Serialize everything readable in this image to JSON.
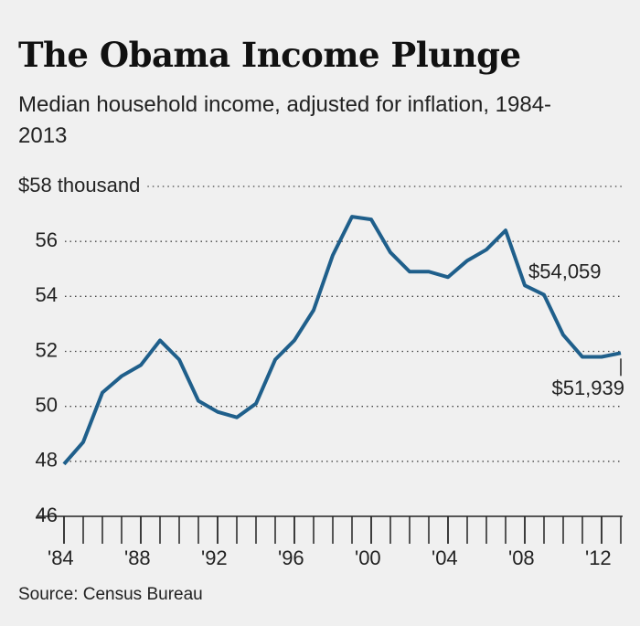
{
  "chart_data": {
    "type": "line",
    "title": "The Obama Income Plunge",
    "subtitle": "Median household income, adjusted for inflation, 1984-2013",
    "source": "Source: Census Bureau",
    "x": [
      1984,
      1985,
      1986,
      1987,
      1988,
      1989,
      1990,
      1991,
      1992,
      1993,
      1994,
      1995,
      1996,
      1997,
      1998,
      1999,
      2000,
      2001,
      2002,
      2003,
      2004,
      2005,
      2006,
      2007,
      2008,
      2009,
      2010,
      2011,
      2012,
      2013
    ],
    "series": [
      {
        "name": "Median household income",
        "color": "#1f5f8b",
        "values": [
          47.9,
          48.7,
          50.5,
          51.1,
          51.5,
          52.4,
          51.7,
          50.2,
          49.8,
          49.6,
          50.1,
          51.7,
          52.4,
          53.5,
          55.5,
          56.9,
          56.8,
          55.6,
          54.9,
          54.9,
          54.7,
          55.3,
          55.7,
          56.4,
          54.4,
          54.059,
          52.6,
          51.8,
          51.8,
          51.939
        ],
        "value_labels": [
          null,
          null,
          null,
          null,
          null,
          null,
          null,
          null,
          null,
          null,
          null,
          null,
          null,
          null,
          null,
          null,
          null,
          null,
          null,
          null,
          null,
          null,
          null,
          null,
          null,
          "$54,059",
          null,
          null,
          null,
          "$51,939"
        ]
      }
    ],
    "xlim": [
      1984,
      2013
    ],
    "xticks": [
      {
        "value": 1984,
        "label": "'84"
      },
      {
        "value": 1988,
        "label": "'88"
      },
      {
        "value": 1992,
        "label": "'92"
      },
      {
        "value": 1996,
        "label": "'96"
      },
      {
        "value": 2000,
        "label": "'00"
      },
      {
        "value": 2004,
        "label": "'04"
      },
      {
        "value": 2008,
        "label": "'08"
      },
      {
        "value": 2012,
        "label": "'12"
      }
    ],
    "ylim": [
      46,
      58
    ],
    "yticks": [
      46,
      48,
      50,
      52,
      54,
      56,
      {
        "value": 58,
        "label": "$58 thousand"
      }
    ],
    "grid": true
  }
}
